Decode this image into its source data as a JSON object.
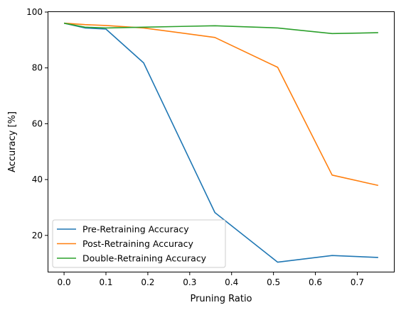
{
  "chart_data": {
    "type": "line",
    "title": "",
    "xlabel": "Pruning Ratio",
    "ylabel": "Accuracy [%]",
    "xlim": [
      -0.0375,
      0.7875
    ],
    "ylim": [
      7.0,
      100.0
    ],
    "xticks": [
      0.0,
      0.1,
      0.2,
      0.3,
      0.4,
      0.5,
      0.6,
      0.7
    ],
    "xtick_labels": [
      "0.0",
      "0.1",
      "0.2",
      "0.3",
      "0.4",
      "0.5",
      "0.6",
      "0.7"
    ],
    "yticks": [
      20,
      40,
      60,
      80,
      100
    ],
    "ytick_labels": [
      "20",
      "40",
      "60",
      "80",
      "100"
    ],
    "grid": false,
    "legend_position": "lower-left",
    "series": [
      {
        "name": "Pre-Retraining Accuracy",
        "color": "#1f77b4",
        "x": [
          0.0,
          0.05,
          0.1,
          0.19,
          0.36,
          0.51,
          0.64,
          0.75
        ],
        "values": [
          96.0,
          94.3,
          93.9,
          81.8,
          28.2,
          10.4,
          12.8,
          12.1
        ]
      },
      {
        "name": "Post-Retraining Accuracy",
        "color": "#ff7f0e",
        "x": [
          0.0,
          0.05,
          0.1,
          0.19,
          0.36,
          0.51,
          0.64,
          0.75
        ],
        "values": [
          96.0,
          95.5,
          95.2,
          94.3,
          90.9,
          80.2,
          41.6,
          37.9
        ]
      },
      {
        "name": "Double-Retraining Accuracy",
        "color": "#2ca02c",
        "x": [
          0.0,
          0.05,
          0.1,
          0.19,
          0.36,
          0.51,
          0.64,
          0.75
        ],
        "values": [
          96.0,
          94.6,
          94.3,
          94.6,
          95.1,
          94.3,
          92.3,
          92.6
        ]
      }
    ]
  }
}
